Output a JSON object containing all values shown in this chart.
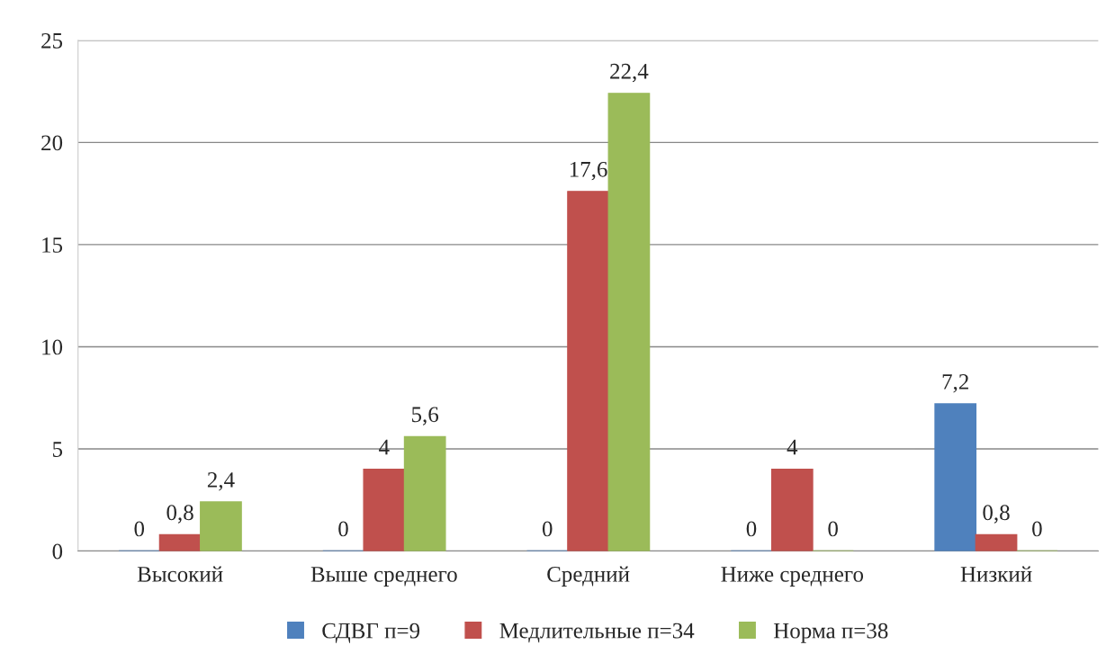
{
  "chart_data": {
    "type": "bar",
    "categories": [
      "Высокий",
      "Выше среднего",
      "Средний",
      "Ниже среднего",
      "Низкий"
    ],
    "series": [
      {
        "name": "СДВГ п=9",
        "color": "#4f81bd",
        "values": [
          0,
          0,
          0,
          0,
          7.2
        ],
        "value_labels": [
          "0",
          "0",
          "0",
          "0",
          "7,2"
        ]
      },
      {
        "name": "Медлительные п=34",
        "color": "#c0504d",
        "values": [
          0.8,
          4,
          17.6,
          4,
          0.8
        ],
        "value_labels": [
          "0,8",
          "4",
          "17,6",
          "4",
          "0,8"
        ]
      },
      {
        "name": "Норма п=38",
        "color": "#9bbb59",
        "values": [
          2.4,
          5.6,
          22.4,
          0,
          0
        ],
        "value_labels": [
          "2,4",
          "5,6",
          "22,4",
          "0",
          "0"
        ]
      }
    ],
    "ylim": [
      0,
      25
    ],
    "yticks": [
      0,
      5,
      10,
      15,
      20,
      25
    ],
    "grid": "y",
    "legend": "bottom"
  }
}
